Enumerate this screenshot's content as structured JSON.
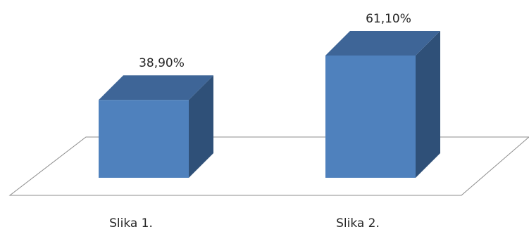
{
  "chart_data": {
    "type": "bar",
    "style": "3d-column",
    "categories": [
      "Slika 1.",
      "Slika 2."
    ],
    "values": [
      38.9,
      61.1
    ],
    "data_labels": [
      "38,90%",
      "61,10%"
    ],
    "unit": "%",
    "ylim": [
      0,
      70
    ],
    "grid": false,
    "legend": "none",
    "colors": {
      "front": "#4f81bd",
      "top": "#3e6597",
      "side": "#2f5078",
      "floor_stroke": "#8c8c8c"
    }
  }
}
